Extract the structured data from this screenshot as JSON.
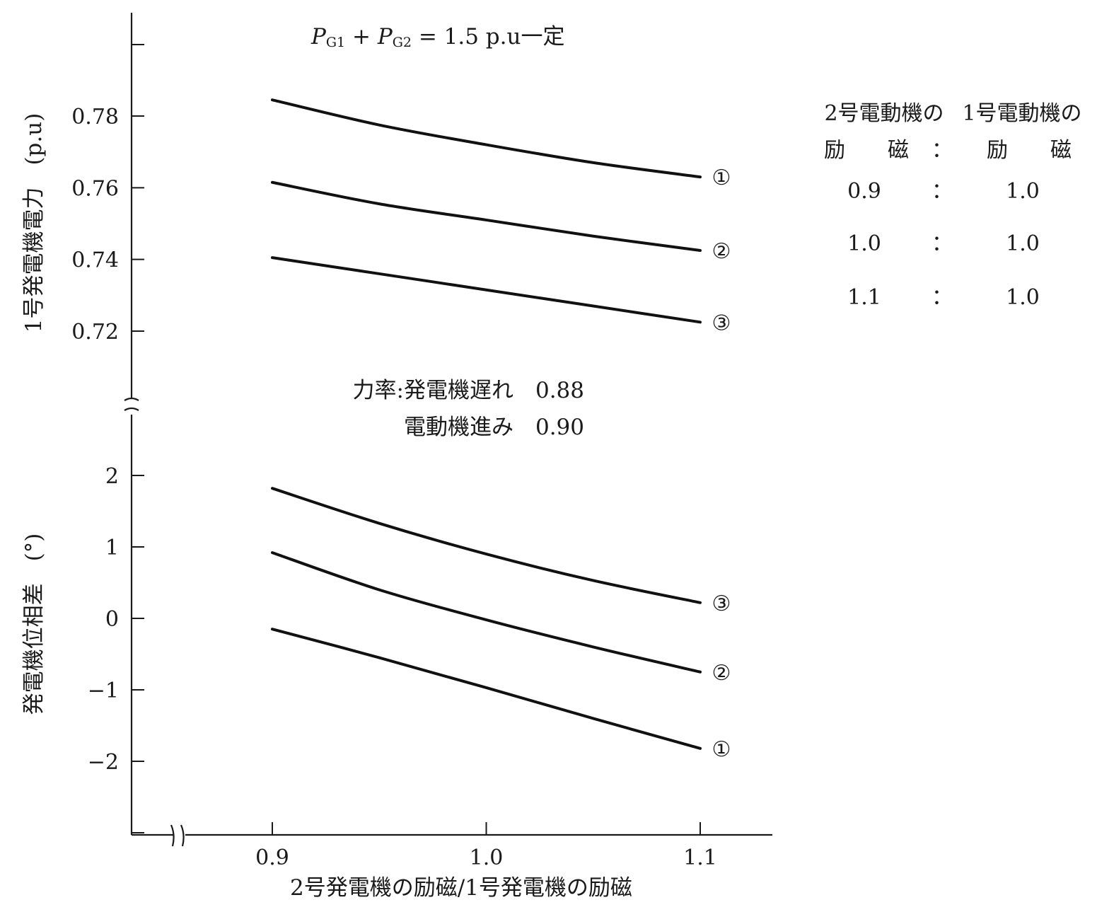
{
  "chart_data": [
    {
      "type": "line",
      "title": "P_G1 + P_G2 = 1.5 p.u一定",
      "title_parts": [
        "P",
        "G1",
        " + ",
        "P",
        "G2",
        " = 1.5 p.u一定"
      ],
      "xlabel": "2号発電機の励磁/1号発電機の励磁",
      "ylabel": "1号発電機電力　(p.u)",
      "xlim": [
        0.9,
        1.1
      ],
      "ylim": [
        0.7,
        0.8
      ],
      "yticks": [
        0.72,
        0.74,
        0.76,
        0.78
      ],
      "ytick_labels": [
        "0.72",
        "0.74",
        "0.76",
        "0.78"
      ],
      "series": [
        {
          "marker": "①",
          "x": [
            0.9,
            0.95,
            1.0,
            1.05,
            1.1
          ],
          "y": [
            0.7845,
            0.7775,
            0.772,
            0.767,
            0.763
          ]
        },
        {
          "marker": "②",
          "x": [
            0.9,
            0.95,
            1.0,
            1.05,
            1.1
          ],
          "y": [
            0.7615,
            0.7555,
            0.751,
            0.7465,
            0.7425
          ]
        },
        {
          "marker": "③",
          "x": [
            0.9,
            0.95,
            1.0,
            1.05,
            1.1
          ],
          "y": [
            0.7405,
            0.736,
            0.7315,
            0.727,
            0.7225
          ]
        }
      ]
    },
    {
      "type": "line",
      "xlabel": "2号発電機の励磁/1号発電機の励磁",
      "ylabel": "発電機位相差　(°)",
      "xlim": [
        0.9,
        1.1
      ],
      "ylim": [
        -3,
        2.5
      ],
      "yticks": [
        2,
        1,
        0,
        -1,
        -2
      ],
      "ytick_labels": [
        "2",
        "1",
        "0",
        "−1",
        "−2"
      ],
      "xticks": [
        0.9,
        1.0,
        1.1
      ],
      "xtick_labels": [
        "0.9",
        "1.0",
        "1.1"
      ],
      "annotation": [
        "力率:発電機遅れ　0.88",
        "電動機進み　0.90"
      ],
      "series": [
        {
          "marker": "③",
          "x": [
            0.9,
            0.95,
            1.0,
            1.05,
            1.1
          ],
          "y": [
            1.82,
            1.33,
            0.9,
            0.53,
            0.22
          ]
        },
        {
          "marker": "②",
          "x": [
            0.9,
            0.95,
            1.0,
            1.05,
            1.1
          ],
          "y": [
            0.92,
            0.4,
            -0.02,
            -0.4,
            -0.75
          ]
        },
        {
          "marker": "①",
          "x": [
            0.9,
            0.95,
            1.0,
            1.05,
            1.1
          ],
          "y": [
            -0.15,
            -0.55,
            -0.97,
            -1.4,
            -1.82
          ]
        }
      ]
    }
  ],
  "legend": {
    "header": [
      "2号電動機の",
      "1号電動機の"
    ],
    "header2": [
      "励　　磁",
      "：",
      "励　　磁"
    ],
    "rows": [
      {
        "a": "0.9",
        "sep": "：",
        "b": "1.0"
      },
      {
        "a": "1.0",
        "sep": "：",
        "b": "1.0"
      },
      {
        "a": "1.1",
        "sep": "：",
        "b": "1.0"
      }
    ]
  }
}
